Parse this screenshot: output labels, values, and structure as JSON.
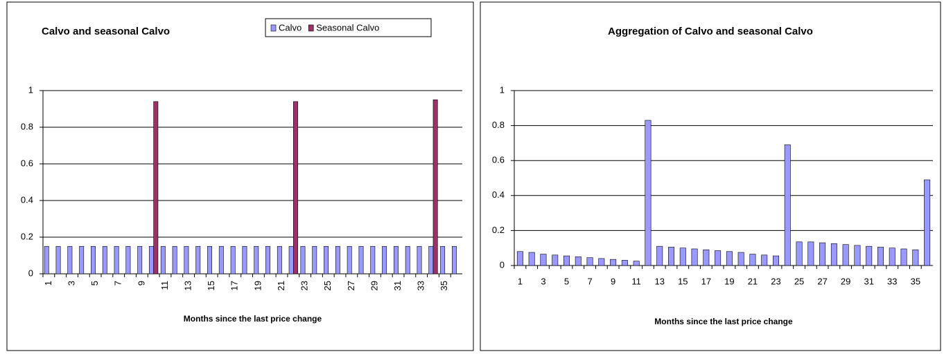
{
  "chart_data": [
    {
      "type": "bar",
      "title": "Calvo and seasonal Calvo",
      "x_label": "Months since the last price change",
      "categories": [
        1,
        null,
        3,
        null,
        5,
        null,
        7,
        null,
        9,
        null,
        11,
        null,
        13,
        null,
        15,
        null,
        17,
        null,
        19,
        null,
        21,
        null,
        23,
        null,
        25,
        null,
        27,
        null,
        29,
        null,
        31,
        null,
        33,
        null,
        35,
        null
      ],
      "series": [
        {
          "name": "Calvo",
          "color": "#9999ff",
          "values": [
            0.15,
            0.15,
            0.15,
            0.15,
            0.15,
            0.15,
            0.15,
            0.15,
            0.15,
            0.15,
            0.15,
            0.15,
            0.15,
            0.15,
            0.15,
            0.15,
            0.15,
            0.15,
            0.15,
            0.15,
            0.15,
            0.15,
            0.15,
            0.15,
            0.15,
            0.15,
            0.15,
            0.15,
            0.15,
            0.15,
            0.15,
            0.15,
            0.15,
            0.15,
            0.15,
            0.15
          ]
        },
        {
          "name": "Seasonal Calvo",
          "color": "#993366",
          "values": [
            0,
            0,
            0,
            0,
            0,
            0,
            0,
            0,
            0,
            0.94,
            0,
            0,
            0,
            0,
            0,
            0,
            0,
            0,
            0,
            0,
            0,
            0.94,
            0,
            0,
            0,
            0,
            0,
            0,
            0,
            0,
            0,
            0,
            0,
            0.95,
            0,
            0
          ]
        }
      ],
      "ylim": [
        0,
        1
      ],
      "yticks": [
        0,
        0.2,
        0.4,
        0.6,
        0.8,
        1
      ],
      "grid": true,
      "legend": "top-right",
      "rotate_x_labels": true
    },
    {
      "type": "bar",
      "title": "Aggregation of Calvo and seasonal Calvo",
      "x_label": "Months since the last price change",
      "categories": [
        1,
        null,
        3,
        null,
        5,
        null,
        7,
        null,
        9,
        null,
        11,
        null,
        13,
        null,
        15,
        null,
        17,
        null,
        19,
        null,
        21,
        null,
        23,
        null,
        25,
        null,
        27,
        null,
        29,
        null,
        31,
        null,
        33,
        null,
        35,
        null
      ],
      "series": [
        {
          "color": "#9999ff",
          "values": [
            0.08,
            0.075,
            0.065,
            0.06,
            0.055,
            0.05,
            0.045,
            0.04,
            0.035,
            0.03,
            0.025,
            0.83,
            0.11,
            0.105,
            0.1,
            0.095,
            0.09,
            0.085,
            0.08,
            0.075,
            0.065,
            0.06,
            0.055,
            0.69,
            0.135,
            0.135,
            0.13,
            0.125,
            0.12,
            0.115,
            0.11,
            0.105,
            0.1,
            0.095,
            0.09,
            0.49
          ]
        }
      ],
      "ylim": [
        0,
        1
      ],
      "yticks": [
        0,
        0.2,
        0.4,
        0.6,
        0.8,
        1
      ],
      "grid": true,
      "rotate_x_labels": false
    }
  ]
}
